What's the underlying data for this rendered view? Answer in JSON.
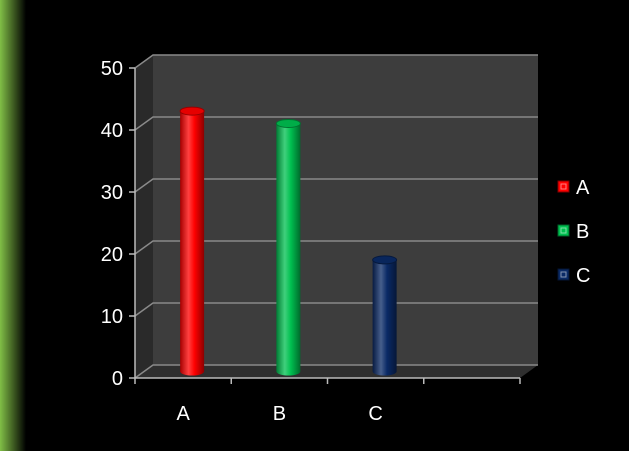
{
  "chart_data": {
    "type": "bar",
    "style": "3d-cylinder",
    "categories": [
      "A",
      "B",
      "C"
    ],
    "series": [
      {
        "name": "A",
        "values": [
          42,
          null,
          null
        ],
        "color": "#ff0000"
      },
      {
        "name": "B",
        "values": [
          null,
          40,
          null
        ],
        "color": "#00c050"
      },
      {
        "name": "C",
        "values": [
          null,
          null,
          18
        ],
        "color": "#0a2a66"
      }
    ],
    "title": "",
    "xlabel": "",
    "ylabel": "",
    "ylim": [
      0,
      50
    ],
    "yticks": [
      "0",
      "10",
      "20",
      "30",
      "40",
      "50"
    ],
    "grid": true,
    "legend": "right",
    "background": "#000000",
    "plot_wall_color": "#3d3d3d",
    "gridline_color": "#8a8a8a",
    "accent_left_edge": "#7ac943"
  }
}
